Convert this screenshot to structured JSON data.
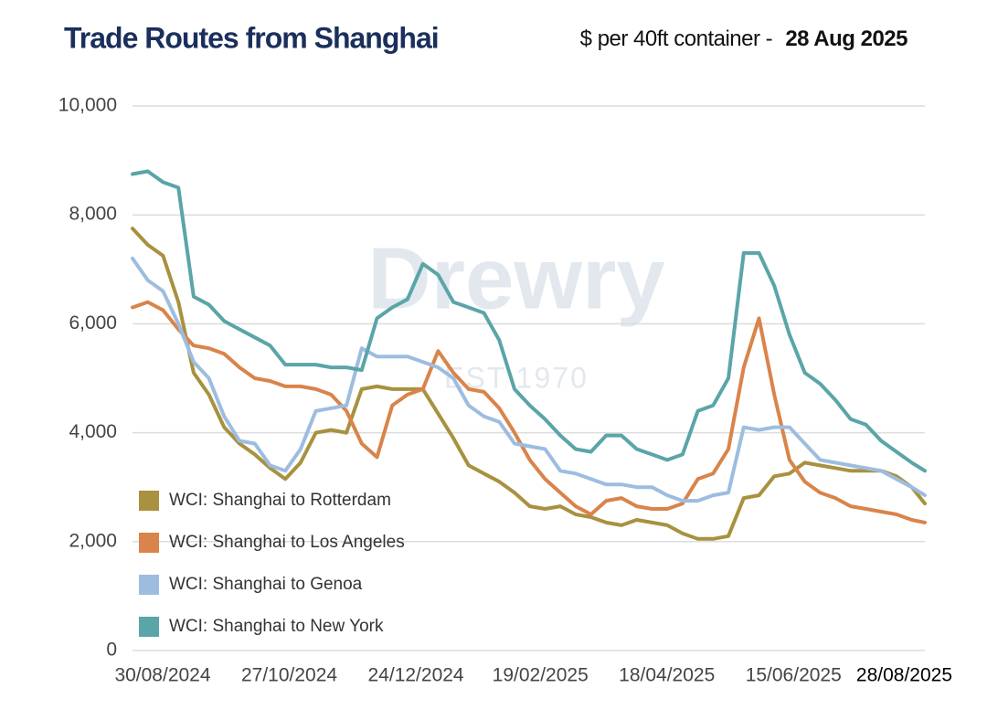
{
  "chart_data": {
    "type": "line",
    "title": "Trade Routes from Shanghai",
    "subtitle": "$ per 40ft container -",
    "subtitle_date": "28 Aug 2025",
    "watermark": "Drewry",
    "watermark_sub": "EST 1970",
    "x": [
      "30/08/2024",
      "06/09/2024",
      "13/09/2024",
      "20/09/2024",
      "27/09/2024",
      "04/10/2024",
      "11/10/2024",
      "18/10/2024",
      "25/10/2024",
      "01/11/2024",
      "08/11/2024",
      "15/11/2024",
      "22/11/2024",
      "29/11/2024",
      "06/12/2024",
      "13/12/2024",
      "20/12/2024",
      "27/12/2024",
      "03/01/2025",
      "10/01/2025",
      "17/01/2025",
      "24/01/2025",
      "31/01/2025",
      "07/02/2025",
      "14/02/2025",
      "21/02/2025",
      "28/02/2025",
      "07/03/2025",
      "14/03/2025",
      "21/03/2025",
      "28/03/2025",
      "04/04/2025",
      "11/04/2025",
      "18/04/2025",
      "25/04/2025",
      "02/05/2025",
      "09/05/2025",
      "16/05/2025",
      "23/05/2025",
      "30/05/2025",
      "06/06/2025",
      "13/06/2025",
      "20/06/2025",
      "27/06/2025",
      "04/07/2025",
      "11/07/2025",
      "18/07/2025",
      "25/07/2025",
      "01/08/2025",
      "08/08/2025",
      "15/08/2025",
      "22/08/2025",
      "28/08/2025"
    ],
    "xlim": [
      "30/08/2024",
      "28/08/2025"
    ],
    "xticks": [
      "30/08/2024",
      "27/10/2024",
      "24/12/2024",
      "19/02/2025",
      "18/04/2025",
      "15/06/2025",
      "28/08/2025"
    ],
    "ylim": [
      0,
      10000
    ],
    "yticks": [
      0,
      {
        "value": 2000,
        "label": "2,000"
      },
      {
        "value": 4000,
        "label": "4,000"
      },
      {
        "value": 6000,
        "label": "6,000"
      },
      {
        "value": 8000,
        "label": "8,000"
      },
      {
        "value": 10000,
        "label": "10,000"
      }
    ],
    "grid": true,
    "legend": "lower left",
    "series": [
      {
        "name": "WCI: Shanghai to Rotterdam",
        "color": "#a8913f",
        "values": [
          7750,
          7450,
          7250,
          6400,
          5100,
          4700,
          4100,
          3800,
          3600,
          3350,
          3150,
          3450,
          4000,
          4050,
          4000,
          4800,
          4850,
          4800,
          4800,
          4800,
          4350,
          3900,
          3400,
          3250,
          3100,
          2900,
          2650,
          2600,
          2650,
          2500,
          2450,
          2350,
          2300,
          2400,
          2350,
          2300,
          2150,
          2050,
          2050,
          2100,
          2800,
          2850,
          3200,
          3250,
          3450,
          3400,
          3350,
          3300,
          3300,
          3300,
          3200,
          3000,
          2700
        ]
      },
      {
        "name": "WCI: Shanghai to Los Angeles",
        "color": "#d9844a",
        "values": [
          6300,
          6400,
          6250,
          5900,
          5600,
          5550,
          5450,
          5200,
          5000,
          4950,
          4850,
          4850,
          4800,
          4700,
          4400,
          3800,
          3550,
          4500,
          4700,
          4800,
          5500,
          5100,
          4800,
          4750,
          4450,
          4000,
          3500,
          3150,
          2900,
          2650,
          2500,
          2750,
          2800,
          2650,
          2600,
          2600,
          2700,
          3150,
          3250,
          3700,
          5200,
          6100,
          4700,
          3500,
          3100,
          2900,
          2800,
          2650,
          2600,
          2550,
          2500,
          2400,
          2350
        ]
      },
      {
        "name": "WCI: Shanghai to Genoa",
        "color": "#9dbde0",
        "values": [
          7200,
          6800,
          6600,
          6000,
          5300,
          5000,
          4300,
          3850,
          3800,
          3400,
          3300,
          3700,
          4400,
          4450,
          4500,
          5550,
          5400,
          5400,
          5400,
          5300,
          5200,
          5000,
          4500,
          4300,
          4200,
          3800,
          3750,
          3700,
          3300,
          3250,
          3150,
          3050,
          3050,
          3000,
          3000,
          2850,
          2750,
          2750,
          2850,
          2900,
          4100,
          4050,
          4100,
          4100,
          3800,
          3500,
          3450,
          3400,
          3350,
          3300,
          3150,
          3000,
          2850
        ]
      },
      {
        "name": "WCI: Shanghai to New York",
        "color": "#5aa5a8",
        "values": [
          8750,
          8800,
          8600,
          8500,
          6500,
          6350,
          6050,
          5900,
          5750,
          5600,
          5250,
          5250,
          5250,
          5200,
          5200,
          5150,
          6100,
          6300,
          6450,
          7100,
          6900,
          6400,
          6300,
          6200,
          5700,
          4800,
          4500,
          4250,
          3950,
          3700,
          3650,
          3950,
          3950,
          3700,
          3600,
          3500,
          3600,
          4400,
          4500,
          5000,
          7300,
          7300,
          6700,
          5800,
          5100,
          4900,
          4600,
          4250,
          4150,
          3850,
          3650,
          3450,
          3300
        ]
      }
    ]
  }
}
